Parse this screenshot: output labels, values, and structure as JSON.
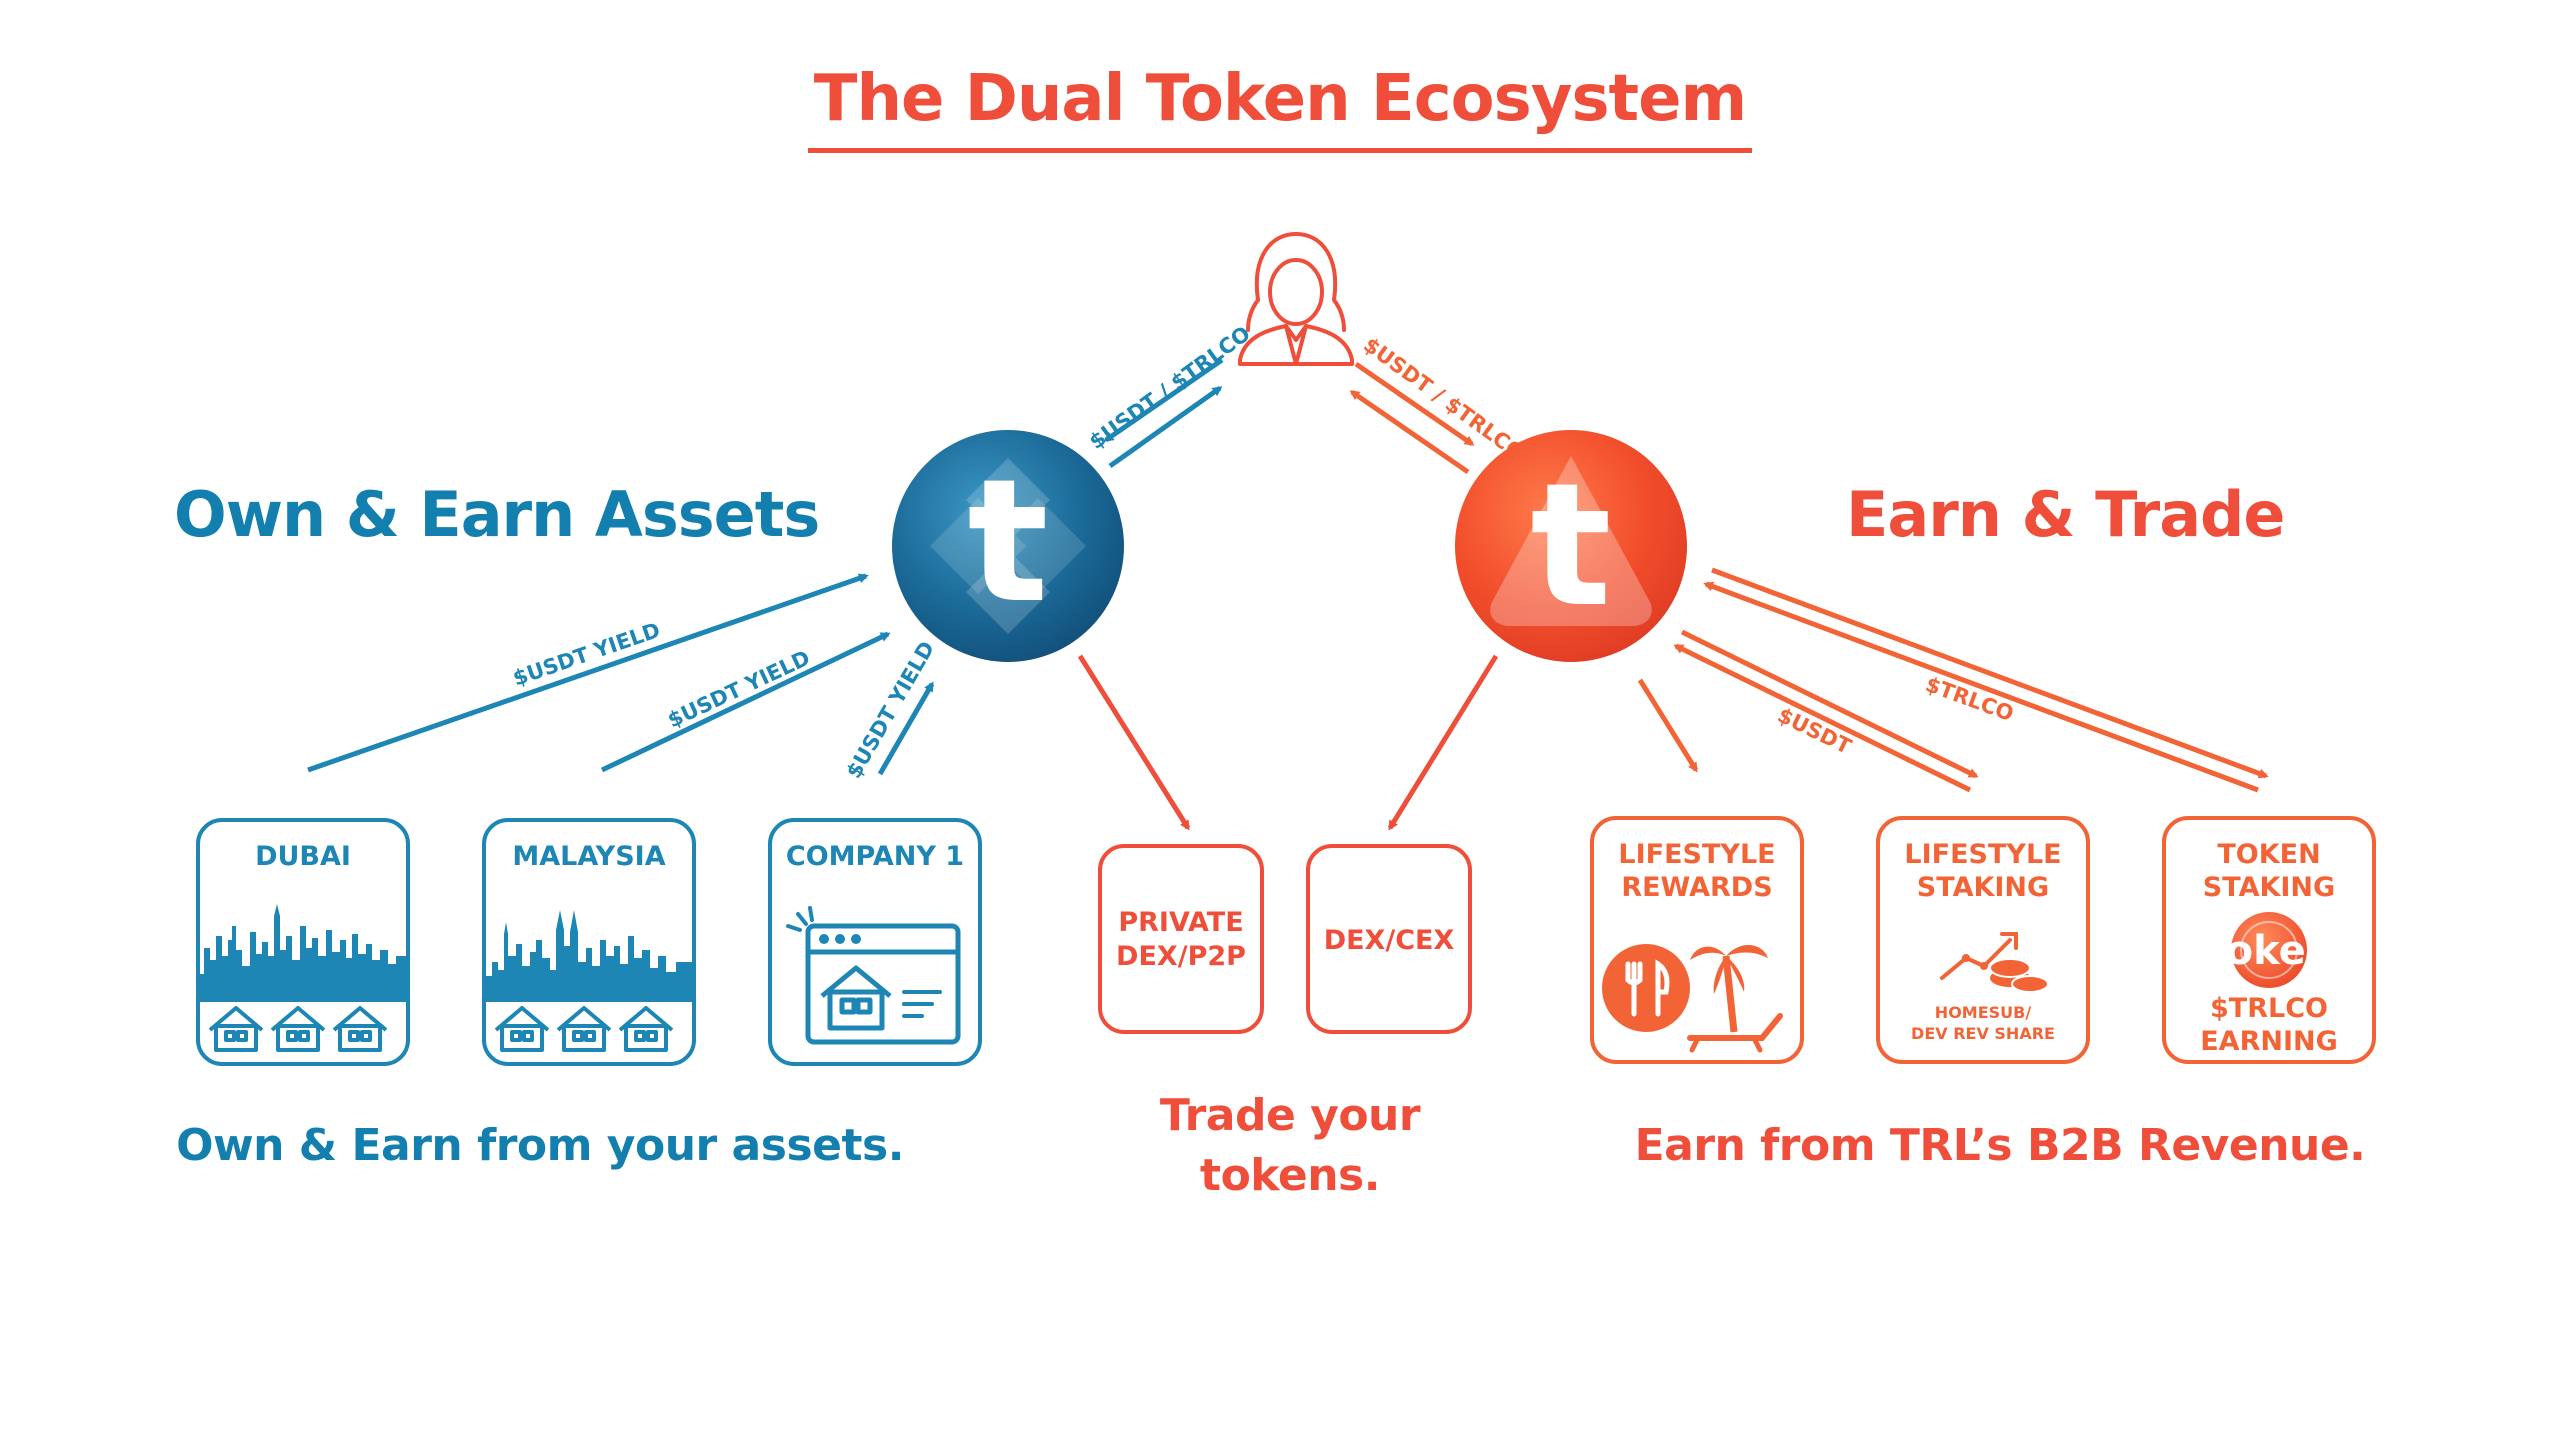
{
  "title": "The Dual Token Ecosystem",
  "left_section": {
    "heading": "Own & Earn Assets",
    "caption": "Own & Earn from your assets."
  },
  "right_section": {
    "heading": "Earn & Trade",
    "caption": "Earn from TRL’s B2B Revenue."
  },
  "middle_caption": {
    "line1": "Trade your",
    "line2": "tokens."
  },
  "tokens": {
    "left_glyph": "t",
    "right_glyph": "t"
  },
  "arrow_labels": {
    "user_left": "$USDT / $TRLCO",
    "user_right": "$USDT / $TRLCO",
    "yield_1": "$USDT YIELD",
    "yield_2": "$USDT YIELD",
    "yield_3": "$USDT YIELD",
    "usdt": "$USDT",
    "trlco": "$TRLCO"
  },
  "assets": [
    {
      "label": "DUBAI",
      "icon": "skyline-houses-icon"
    },
    {
      "label": "MALAYSIA",
      "icon": "skyline-houses-icon"
    },
    {
      "label": "COMPANY 1",
      "icon": "browser-house-icon"
    }
  ],
  "trade": [
    {
      "line1": "PRIVATE",
      "line2": "DEX/P2P"
    },
    {
      "line1": "DEX/CEX"
    }
  ],
  "earn": [
    {
      "line1": "LIFESTYLE",
      "line2": "REWARDS",
      "icon": "dining-beach-icon"
    },
    {
      "line1": "LIFESTYLE",
      "line2": "STAKING",
      "sub1": "HOMESUB/",
      "sub2": "DEV REV SHARE",
      "icon": "growth-chart-icon"
    },
    {
      "line1": "TOKEN",
      "line2": "STAKING",
      "coin": "Token",
      "earn1": "$TRLCO",
      "earn2": "EARNING",
      "icon": "token-coin-icon"
    }
  ],
  "colors": {
    "blue": "#1d86b4",
    "red": "#ef4e3b",
    "orange": "#f26436"
  }
}
